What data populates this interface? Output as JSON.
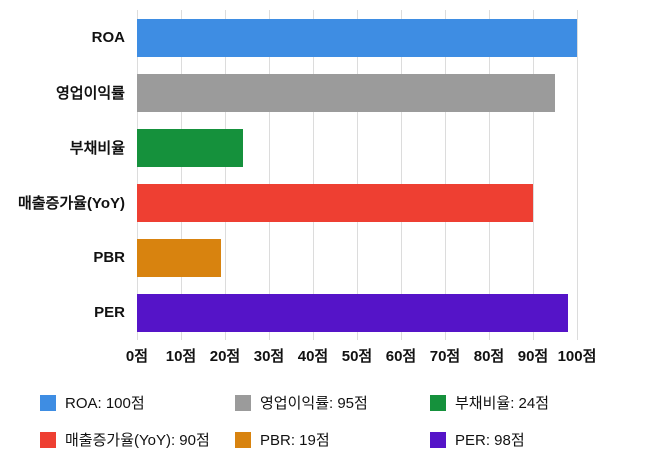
{
  "chart_data": {
    "type": "bar",
    "orientation": "horizontal",
    "title": "",
    "xlabel": "",
    "ylabel": "",
    "xlim": [
      0,
      100
    ],
    "grid": true,
    "legend_position": "bottom",
    "categories": [
      "ROA",
      "영업이익률",
      "부채비율",
      "매출증가율(YoY)",
      "PBR",
      "PER"
    ],
    "values": [
      100,
      95,
      24,
      90,
      19,
      98
    ],
    "colors": [
      "#3E8DE3",
      "#9B9B9B",
      "#15913C",
      "#EE3F32",
      "#D8830F",
      "#5514C8"
    ],
    "x_ticks": [
      "0점",
      "10점",
      "20점",
      "30점",
      "40점",
      "50점",
      "60점",
      "70점",
      "80점",
      "90점",
      "100점"
    ],
    "legend": [
      "ROA: 100점",
      "영업이익률: 95점",
      "부채비율: 24점",
      "매출증가율(YoY): 90점",
      "PBR: 19점",
      "PER: 98점"
    ]
  },
  "styles": {
    "grid_color": "#dcdcdc",
    "background": "#ffffff",
    "text_color": "#111111"
  }
}
